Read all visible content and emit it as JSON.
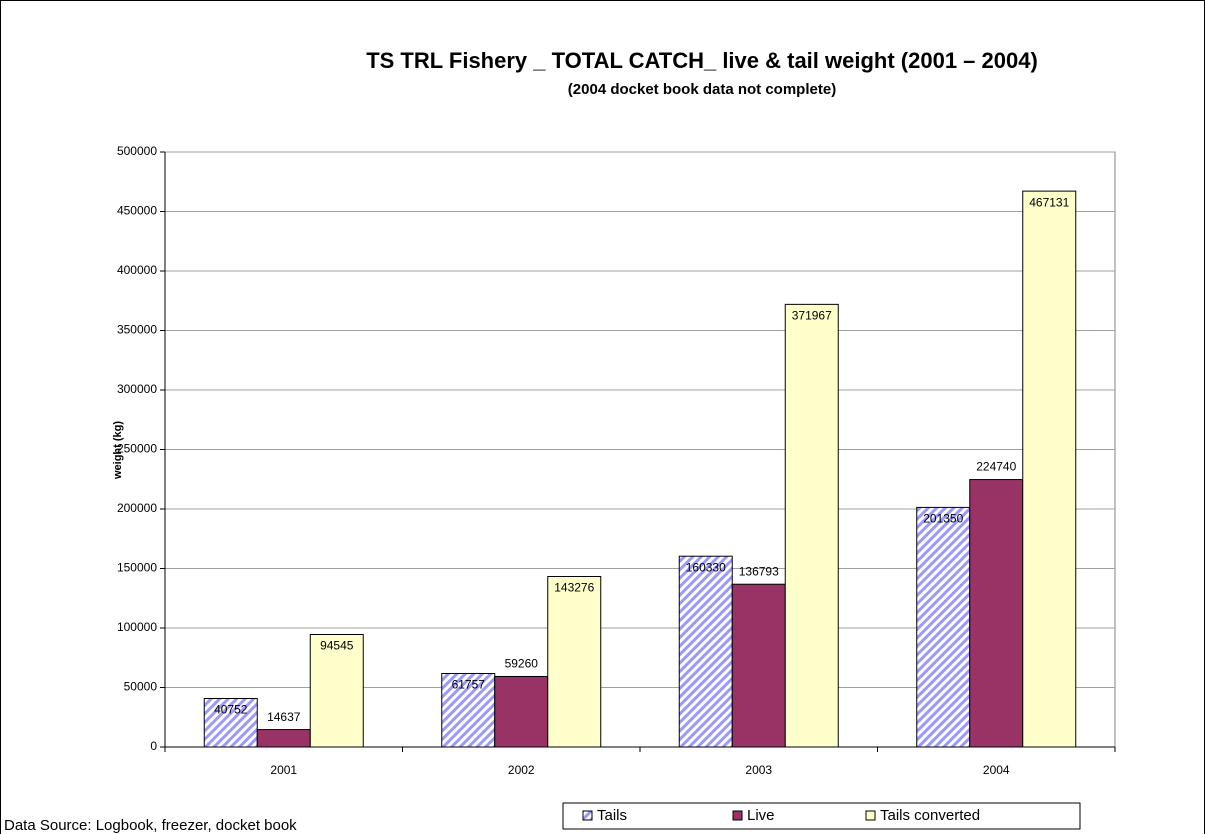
{
  "chart_data": {
    "type": "bar",
    "title": "TS TRL Fishery _ TOTAL CATCH_ live & tail weight (2001 – 2004)",
    "subtitle": "(2004 docket book data not complete)",
    "y_label": "weight (kg)",
    "note": "Data Source:  Logbook, freezer, docket book",
    "categories": [
      "2001",
      "2002",
      "2003",
      "2004"
    ],
    "series": [
      {
        "name": "Tails",
        "color": "#9999ff",
        "pattern": "hatch",
        "values": [
          40752,
          61757,
          160330,
          201350
        ]
      },
      {
        "name": "Live",
        "color": "#993366",
        "values": [
          14637,
          59260,
          136793,
          224740
        ]
      },
      {
        "name": "Tails converted",
        "color": "#ffffcc",
        "values": [
          94545,
          143276,
          371967,
          467131
        ]
      }
    ],
    "ylim": [
      0,
      500000
    ],
    "yticks": [
      0,
      50000,
      100000,
      150000,
      200000,
      250000,
      300000,
      350000,
      400000,
      450000,
      500000
    ],
    "grid": true,
    "legend": "bottom"
  }
}
